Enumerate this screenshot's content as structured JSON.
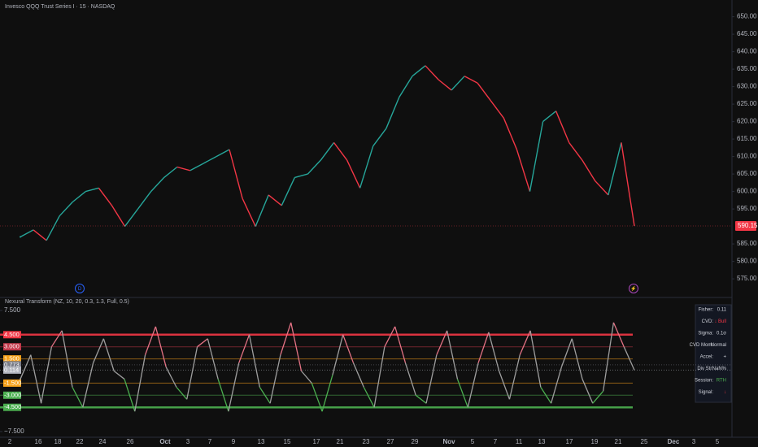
{
  "chart_data": [
    {
      "type": "price",
      "title": "Invesco QQQ Trust Series I · 15 · NASDAQ",
      "series": [
        {
          "name": "QQQ",
          "color": "#26a69a",
          "down_color": "#f23645",
          "values": [
            587,
            589,
            586,
            593,
            597,
            600,
            601,
            596,
            590,
            595,
            600,
            604,
            607,
            606,
            608,
            610,
            612,
            598,
            590,
            599,
            596,
            604,
            605,
            609,
            614,
            609,
            601,
            613,
            618,
            627,
            633,
            636,
            632,
            629,
            633,
            631,
            626,
            621,
            612,
            600,
            620,
            623,
            614,
            609,
            603,
            599,
            614,
            590.15
          ]
        }
      ],
      "ylim": [
        572,
        652
      ],
      "yticks": [
        {
          "value": 575,
          "label": "575.00"
        },
        {
          "value": 580,
          "label": "580.00"
        },
        {
          "value": 585,
          "label": "585.00"
        },
        {
          "value": 595,
          "label": "595.00"
        },
        {
          "value": 600,
          "label": "600.00"
        },
        {
          "value": 605,
          "label": "605.00"
        },
        {
          "value": 610,
          "label": "610.00"
        },
        {
          "value": 615,
          "label": "615.00"
        },
        {
          "value": 620,
          "label": "620.00"
        },
        {
          "value": 625,
          "label": "625.00"
        },
        {
          "value": 630,
          "label": "630.00"
        },
        {
          "value": 635,
          "label": "635.00"
        },
        {
          "value": 640,
          "label": "640.00"
        },
        {
          "value": 645,
          "label": "645.00"
        },
        {
          "value": 650,
          "label": "650.00"
        }
      ],
      "markers": [
        "D",
        "⚡"
      ]
    },
    {
      "type": "oscillator",
      "title": "Nexural Transform (NZ, 10, 20, 0.3, 1.3, Full, 0.5)",
      "series": [
        {
          "name": "Fisher",
          "color": "#9e9e9e",
          "high_color": "#e57385",
          "low_color": "#4caf50",
          "values": [
            -1,
            2,
            -4,
            3,
            5,
            -2,
            -4.5,
            1,
            4,
            0,
            -1,
            -5,
            2,
            5.5,
            0.5,
            -2,
            -3.5,
            3,
            4,
            -1,
            -5,
            1,
            4.5,
            -2,
            -4,
            2,
            6,
            0,
            -1.5,
            -5,
            -0.5,
            4.5,
            1,
            -2,
            -4.5,
            3,
            5.5,
            1,
            -3,
            -4,
            2,
            5,
            -1,
            -4.5,
            1,
            4.8,
            0,
            -3.5,
            2,
            5,
            -2,
            -4,
            0.5,
            4,
            -1,
            -4,
            -2.5,
            6,
            3,
            0.114
          ]
        }
      ],
      "ylim": [
        -7.5,
        7.5
      ],
      "yticks": [
        {
          "value": 7.5,
          "label": "7.500"
        },
        {
          "value": -7.5,
          "label": "−7.500"
        }
      ],
      "levels": [
        {
          "value": 4.5,
          "label": "4.500",
          "color": "#f23645",
          "line": true
        },
        {
          "value": 3,
          "label": "3.000",
          "color": "#c2394b",
          "line": true
        },
        {
          "value": 1.5,
          "label": "1.500",
          "color": "#f7a21b",
          "line": true
        },
        {
          "value": 0.773,
          "label": "0.773",
          "color": "#787b86",
          "line": false
        },
        {
          "value": 0.114,
          "label": "0.114",
          "color": "#b2b5be",
          "line": false
        },
        {
          "value": -1.5,
          "label": "-1.500",
          "color": "#f7a21b",
          "line": true
        },
        {
          "value": -3,
          "label": "-3.000",
          "color": "#4caf50",
          "line": true
        },
        {
          "value": -4.5,
          "label": "-4.500",
          "color": "#4caf50",
          "line": true
        }
      ]
    }
  ],
  "table": {
    "rows": [
      [
        "Fisher:",
        0.11
      ],
      [
        "CVD:",
        "↓ Bull"
      ],
      [
        "Sigma:",
        "0.1σ"
      ],
      [
        "CVD Mom:",
        "Normal"
      ],
      [
        "Accel:",
        "+"
      ],
      [
        "Div Str:",
        "NaN%"
      ],
      [
        "Session:",
        "RTH"
      ],
      [
        "Signal:",
        "↓"
      ]
    ]
  },
  "x_axis_labels": [
    "2",
    "16",
    "18",
    "22",
    "24",
    "26",
    "Oct",
    "3",
    "7",
    "9",
    "13",
    "15",
    "17",
    "21",
    "23",
    "27",
    "29",
    "Nov",
    "5",
    "7",
    "11",
    "13",
    "17",
    "19",
    "21",
    "25",
    "Dec",
    "3",
    "5"
  ]
}
